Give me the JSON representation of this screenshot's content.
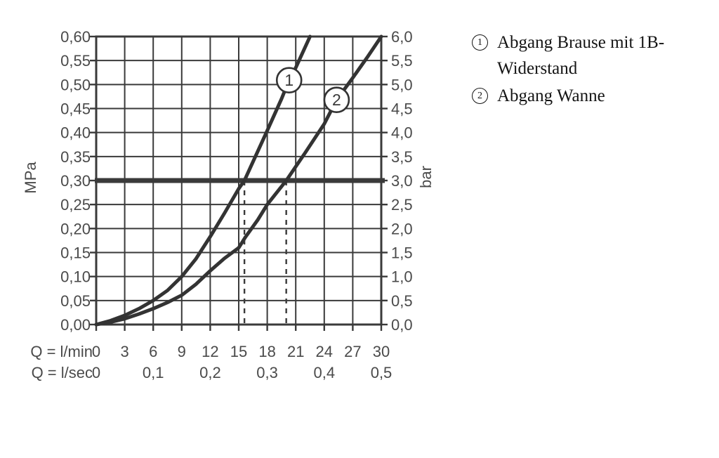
{
  "chart_data": {
    "type": "line",
    "title": "",
    "grid": true,
    "xlim_lmin": [
      0,
      30
    ],
    "ylim_mpa": [
      0,
      0.6
    ],
    "x_axis_row1": {
      "label": "Q = l/min",
      "values": [
        0,
        3,
        6,
        9,
        12,
        15,
        18,
        21,
        24,
        27,
        30
      ],
      "labels": [
        "0",
        "3",
        "6",
        "9",
        "12",
        "15",
        "18",
        "21",
        "24",
        "27",
        "30"
      ]
    },
    "x_axis_row2": {
      "label": "Q = l/sec",
      "values": [
        0,
        6,
        12,
        18,
        24,
        30
      ],
      "labels": [
        "0",
        "0,1",
        "0,2",
        "0,3",
        "0,4",
        "0,5"
      ]
    },
    "y_axis_left": {
      "unit": "MPa",
      "values": [
        0.6,
        0.55,
        0.5,
        0.45,
        0.4,
        0.35,
        0.3,
        0.25,
        0.2,
        0.15,
        0.1,
        0.05,
        0.0
      ],
      "labels": [
        "0,60",
        "0,55",
        "0,50",
        "0,45",
        "0,40",
        "0,35",
        "0,30",
        "0,25",
        "0,20",
        "0,15",
        "0,10",
        "0,05",
        "0,00"
      ]
    },
    "y_axis_right": {
      "unit": "bar",
      "values": [
        0.6,
        0.55,
        0.5,
        0.45,
        0.4,
        0.35,
        0.3,
        0.25,
        0.2,
        0.15,
        0.1,
        0.05,
        0.0
      ],
      "labels": [
        "6,0",
        "5,5",
        "5,0",
        "4,5",
        "4,0",
        "3,5",
        "3,0",
        "2,5",
        "2,0",
        "1,5",
        "1,0",
        "0,5",
        "0,0"
      ]
    },
    "reference_line_mpa": 0.3,
    "guide_lines_x_lmin": [
      15.6,
      20.0
    ],
    "series": [
      {
        "name": "Abgang Brause mit 1B-Widerstand",
        "marker_label": "1",
        "marker_at": {
          "x": 20.3,
          "y": 0.509
        },
        "flow_at_3bar_lmin": 15.6,
        "points": [
          [
            0,
            0
          ],
          [
            1.5,
            0.008
          ],
          [
            3,
            0.019
          ],
          [
            4.5,
            0.033
          ],
          [
            6,
            0.05
          ],
          [
            7.5,
            0.071
          ],
          [
            9,
            0.1
          ],
          [
            10.5,
            0.137
          ],
          [
            12,
            0.183
          ],
          [
            13.5,
            0.232
          ],
          [
            15,
            0.283
          ],
          [
            15.6,
            0.3
          ],
          [
            16.5,
            0.339
          ],
          [
            18,
            0.404
          ],
          [
            19.5,
            0.47
          ],
          [
            20.3,
            0.509
          ],
          [
            21,
            0.535
          ],
          [
            22.5,
            0.6
          ]
        ]
      },
      {
        "name": "Abgang Wanne",
        "marker_label": "2",
        "marker_at": {
          "x": 25.3,
          "y": 0.468
        },
        "flow_at_3bar_lmin": 20.0,
        "points": [
          [
            0,
            0
          ],
          [
            1.5,
            0.005
          ],
          [
            3,
            0.012
          ],
          [
            4.5,
            0.022
          ],
          [
            6,
            0.033
          ],
          [
            7.5,
            0.046
          ],
          [
            9,
            0.061
          ],
          [
            10.5,
            0.084
          ],
          [
            12,
            0.112
          ],
          [
            13.5,
            0.138
          ],
          [
            15,
            0.16
          ],
          [
            15.7,
            0.182
          ],
          [
            17,
            0.218
          ],
          [
            18,
            0.25
          ],
          [
            20,
            0.3
          ],
          [
            22,
            0.358
          ],
          [
            24,
            0.418
          ],
          [
            25.3,
            0.468
          ],
          [
            27,
            0.514
          ],
          [
            28.5,
            0.556
          ],
          [
            30,
            0.6
          ]
        ]
      }
    ],
    "colors": {
      "ink": "#3a3a3a",
      "text": "#4a4a4a",
      "curve": "#333333",
      "background": "#ffffff"
    }
  },
  "legend": {
    "items": [
      {
        "number": "1",
        "label": "Abgang Brause mit 1B-Widerstand"
      },
      {
        "number": "2",
        "label": "Abgang Wanne"
      }
    ]
  }
}
